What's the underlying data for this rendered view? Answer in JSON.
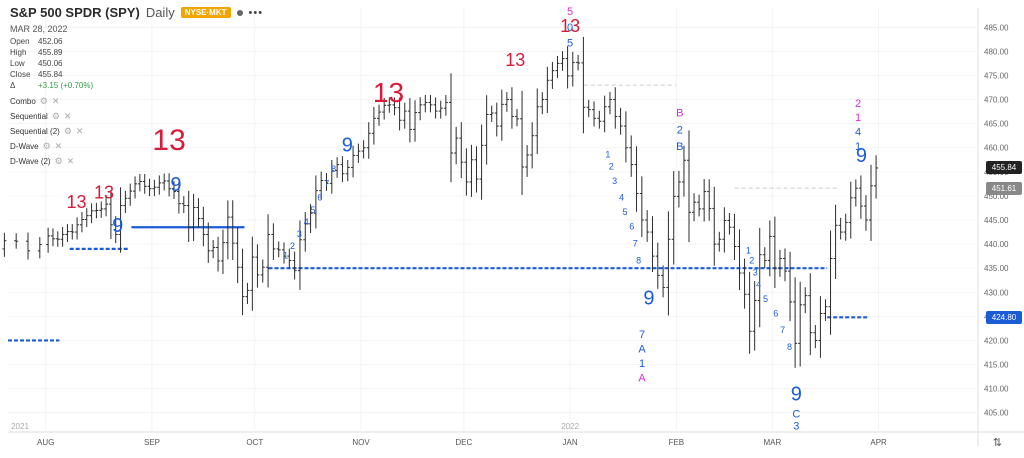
{
  "header": {
    "title": "S&P 500 SPDR (SPY)",
    "interval": "Daily",
    "exchange": "NYSE·MKT",
    "date": "MAR 28, 2022",
    "ohlc": [
      {
        "label": "Open",
        "value": "452.06"
      },
      {
        "label": "High",
        "value": "455.89"
      },
      {
        "label": "Low",
        "value": "450.06"
      },
      {
        "label": "Close",
        "value": "455.84"
      }
    ],
    "change_label": "Δ",
    "change": "+3.15 (+0.70%)",
    "studies": [
      "Combo",
      "Sequential",
      "Sequential (2)",
      "D-Wave",
      "D-Wave (2)"
    ]
  },
  "price_tags": [
    {
      "value": "455.84",
      "color": "#222222"
    },
    {
      "value": "451.61",
      "color": "#888888"
    },
    {
      "value": "424.80",
      "color": "#1a5cd8"
    }
  ],
  "chart_data": {
    "type": "ohlc",
    "y_axis": {
      "range": [
        401,
        489
      ],
      "ticks": [
        405,
        410,
        415,
        420,
        425,
        430,
        435,
        440,
        445,
        450,
        455,
        460,
        465,
        470,
        475,
        480,
        485
      ],
      "side": "right"
    },
    "x_axis": {
      "range": [
        "2021-07-21",
        "2022-04-30"
      ],
      "month_labels": [
        {
          "label": "AUG",
          "date": "2021-08-01"
        },
        {
          "label": "SEP",
          "date": "2021-09-01"
        },
        {
          "label": "OCT",
          "date": "2021-10-01"
        },
        {
          "label": "NOV",
          "date": "2021-11-01"
        },
        {
          "label": "DEC",
          "date": "2021-12-01"
        },
        {
          "label": "JAN",
          "date": "2022-01-01"
        },
        {
          "label": "FEB",
          "date": "2022-02-01"
        },
        {
          "label": "MAR",
          "date": "2022-03-01"
        },
        {
          "label": "APR",
          "date": "2022-04-01"
        }
      ],
      "year_labels": [
        {
          "label": "2021",
          "date": "2021-07-21"
        },
        {
          "label": "2022",
          "date": "2022-01-01"
        }
      ]
    },
    "grid": true,
    "closes_by_month": [
      {
        "month": "2021-07",
        "closes": [
          425.4,
          432.5,
          435.5,
          438.2,
          439.0,
          440.7,
          440.6,
          438.6,
          439.9
        ]
      },
      {
        "month": "2021-08",
        "closes": [
          441.7,
          441.1,
          441.0,
          442.0,
          442.6,
          442.5,
          444.0,
          445.1,
          445.9,
          446.9,
          447.0,
          447.3,
          448.3,
          444.0,
          442.0,
          448.0,
          449.5,
          451.0,
          452.5,
          453.0,
          452.0,
          451.5
        ]
      },
      {
        "month": "2021-09",
        "closes": [
          451.8,
          452.7,
          453.1,
          451.5,
          450.9,
          448.4,
          448.0,
          443.5,
          447.6,
          445.3,
          442.0,
          438.6,
          439.3,
          436.5,
          440.3,
          445.6,
          440.2,
          435.2,
          429.1,
          430.4,
          437.3
        ]
      },
      {
        "month": "2021-10",
        "closes": [
          433.6,
          435.2,
          442.0,
          439.0,
          438.8,
          437.5,
          436.6,
          434.5,
          440.9,
          444.2,
          446.4,
          451.1,
          453.2,
          452.6,
          455.3,
          456.5,
          454.6,
          455.9,
          458.4,
          459.3
        ]
      },
      {
        "month": "2021-11",
        "closes": [
          460.0,
          463.0,
          466.1,
          467.4,
          468.8,
          468.9,
          468.3,
          465.7,
          467.6,
          463.8,
          467.3,
          468.9,
          469.4,
          468.9,
          467.6,
          468.2,
          469.4,
          458.9,
          462.0,
          457.0
        ]
      },
      {
        "month": "2021-12",
        "closes": [
          452.9,
          457.5,
          453.5,
          460.5,
          466.9,
          467.2,
          464.5,
          469.0,
          470.0,
          466.5,
          466.0,
          456.0,
          458.5,
          462.5,
          468.5,
          470.0,
          474.0,
          476.0,
          477.5,
          478.5,
          474.9
        ]
      },
      {
        "month": "2022-01",
        "closes": [
          477.7,
          477.6,
          468.4,
          467.9,
          466.1,
          465.5,
          468.5,
          470.0,
          466.5,
          464.5,
          460.0,
          456.5,
          450.5,
          445.0,
          442.5,
          437.5,
          433.5,
          431.0,
          441.0,
          449.9
        ]
      },
      {
        "month": "2022-02",
        "closes": [
          452.9,
          457.4,
          446.6,
          448.7,
          447.3,
          450.9,
          447.4,
          440.0,
          441.0,
          444.9,
          443.5,
          439.5,
          434.0,
          429.6,
          421.9,
          428.3,
          437.8,
          436.6,
          441.6
        ]
      },
      {
        "month": "2022-03",
        "closes": [
          435.0,
          437.0,
          434.4,
          428.0,
          419.4,
          427.4,
          429.3,
          421.6,
          420.0,
          425.6,
          427.0,
          437.0,
          443.9,
          442.5,
          444.5,
          449.6,
          451.6,
          447.9,
          445.0,
          452.1,
          455.8
        ]
      }
    ],
    "indicators": {
      "sequential_red": [
        "13",
        "13",
        "13",
        "13",
        "13",
        "13"
      ],
      "sequential_blue": [
        "9",
        "9",
        "9",
        "9",
        "9",
        "9"
      ],
      "dwave": [
        "5",
        "0",
        "5",
        "B",
        "2",
        "B",
        "7",
        "A",
        "1",
        "A",
        "C",
        "3",
        "2",
        "1",
        "4",
        "1"
      ],
      "setup_counts": [
        "1",
        "2",
        "3",
        "4",
        "5",
        "6",
        "7",
        "8"
      ]
    },
    "levels": [
      {
        "value": 420.0,
        "from": "2021-07-21",
        "to": "2021-08-05",
        "color": "#1a5cd8",
        "style": "dashed"
      },
      {
        "value": 439.0,
        "from": "2021-08-08",
        "to": "2021-08-25",
        "color": "#1a5cd8",
        "style": "dashed"
      },
      {
        "value": 443.5,
        "from": "2021-08-26",
        "to": "2021-09-28",
        "color": "#1a5cd8",
        "style": "solid"
      },
      {
        "value": 435.0,
        "from": "2021-10-05",
        "to": "2022-03-17",
        "color": "#1a5cd8",
        "style": "dashed"
      },
      {
        "value": 424.8,
        "from": "2022-03-17",
        "to": "2022-03-29",
        "color": "#1a5cd8",
        "style": "dashed"
      },
      {
        "value": 473.0,
        "from": "2022-01-05",
        "to": "2022-02-01",
        "color": "#cccccc",
        "style": "dashed"
      },
      {
        "value": 451.61,
        "from": "2022-02-18",
        "to": "2022-03-20",
        "color": "#cccccc",
        "style": "dashed"
      }
    ]
  }
}
